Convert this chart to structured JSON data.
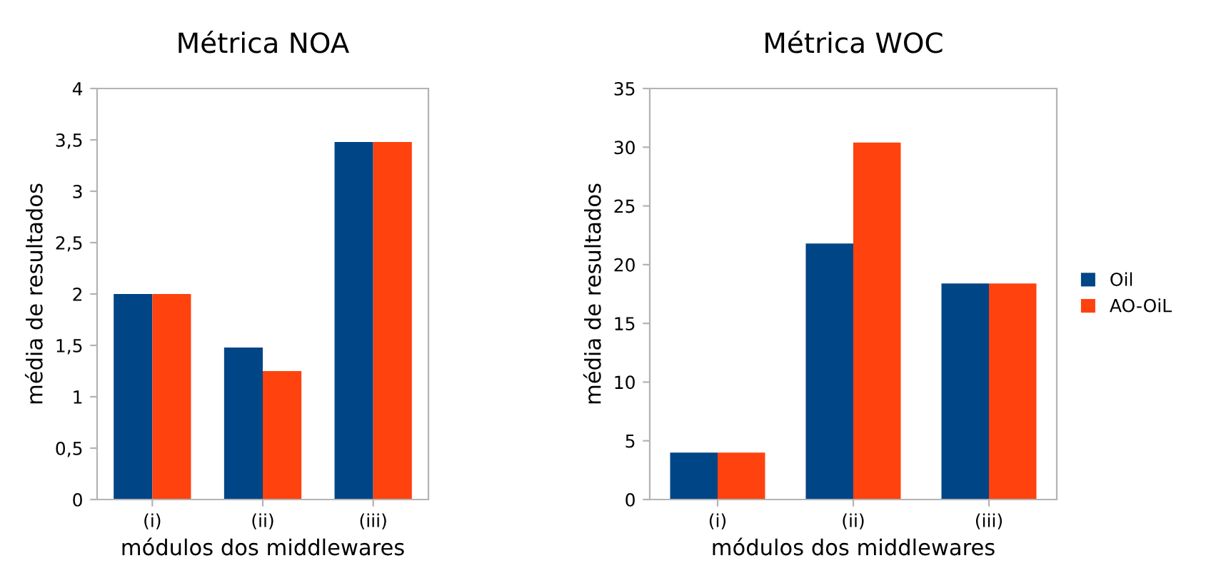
{
  "chart_data": [
    {
      "type": "bar",
      "title": "Métrica NOA",
      "xlabel": "módulos dos middlewares",
      "ylabel": "média de resultados",
      "categories": [
        "(i)",
        "(ii)",
        "(iii)"
      ],
      "series": [
        {
          "color": "#004586",
          "values": [
            2,
            1.48,
            3.48
          ]
        },
        {
          "color": "#ff420e",
          "values": [
            2,
            1.25,
            3.48
          ]
        }
      ],
      "ylim": [
        0,
        4
      ],
      "yticks": [
        0,
        {
          "value": 0.5,
          "label": "0,5"
        },
        1,
        {
          "value": 1.5,
          "label": "1,5"
        },
        2,
        {
          "value": 2.5,
          "label": "2,5"
        },
        3,
        {
          "value": 3.5,
          "label": "3,5"
        },
        4
      ],
      "grid": false,
      "legend": false
    },
    {
      "type": "bar",
      "title": "Métrica WOC",
      "xlabel": "módulos dos middlewares",
      "ylabel": "média de resultados",
      "categories": [
        "(i)",
        "(ii)",
        "(iii)"
      ],
      "series": [
        {
          "name": "Oil",
          "color": "#004586",
          "values": [
            4,
            21.8,
            18.4
          ]
        },
        {
          "name": "AO-OiL",
          "color": "#ff420e",
          "values": [
            4,
            30.4,
            18.4
          ]
        }
      ],
      "ylim": [
        0,
        35
      ],
      "yticks": [
        0,
        5,
        10,
        15,
        20,
        25,
        30,
        35
      ],
      "grid": false,
      "legend": "right"
    }
  ]
}
